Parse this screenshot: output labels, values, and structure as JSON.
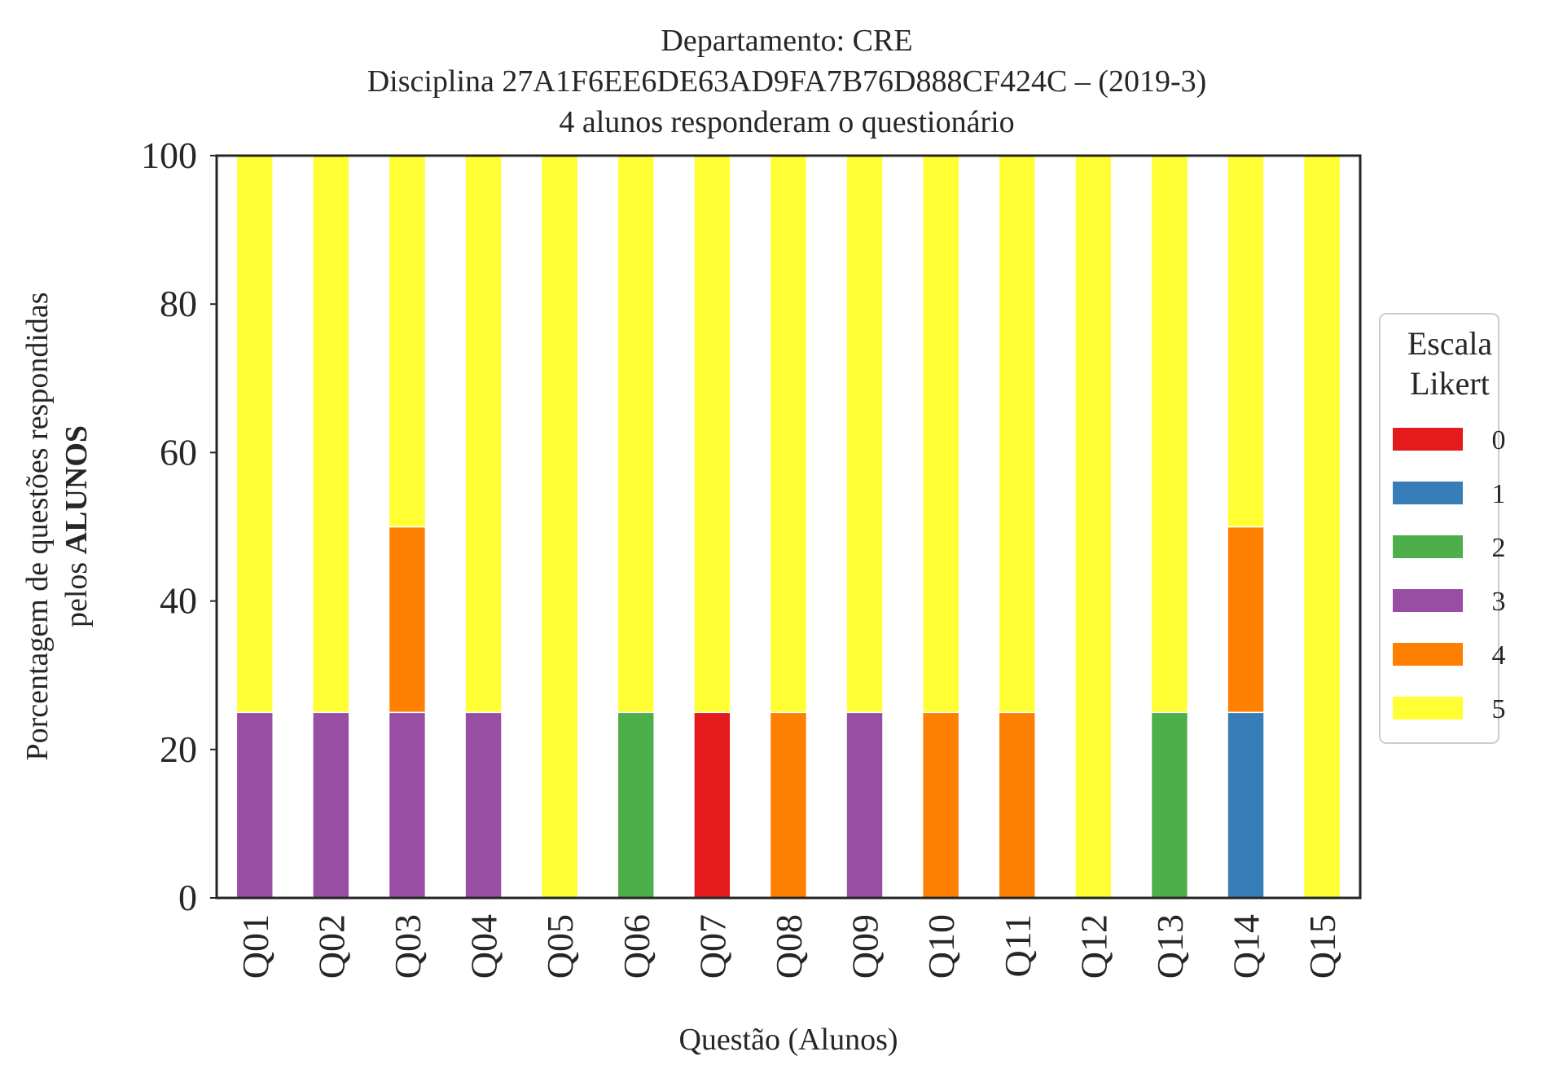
{
  "chart_data": {
    "type": "bar",
    "stacked": true,
    "title": [
      "Departamento: CRE",
      "Disciplina 27A1F6EE6DE63AD9FA7B76D888CF424C – (2019-3)",
      "4 alunos responderam o questionário"
    ],
    "xlabel": "Questão (Alunos)",
    "ylabel_line1": "Porcentagem de questões respondidas",
    "ylabel_line2_prefix": "pelos ",
    "ylabel_line2_bold": "ALUNOS",
    "ylim": [
      0,
      100
    ],
    "yticks": [
      0,
      20,
      40,
      60,
      80,
      100
    ],
    "grid": false,
    "legend": {
      "title_line1": "Escala",
      "title_line2": "Likert",
      "position": "right-center"
    },
    "categories": [
      "Q01",
      "Q02",
      "Q03",
      "Q04",
      "Q05",
      "Q06",
      "Q07",
      "Q08",
      "Q09",
      "Q10",
      "Q11",
      "Q12",
      "Q13",
      "Q14",
      "Q15"
    ],
    "series": [
      {
        "name": "0",
        "color": "#e41a1c",
        "values": [
          0,
          0,
          0,
          0,
          0,
          0,
          25,
          0,
          0,
          0,
          0,
          0,
          0,
          0,
          0
        ]
      },
      {
        "name": "1",
        "color": "#377eb8",
        "values": [
          0,
          0,
          0,
          0,
          0,
          0,
          0,
          0,
          0,
          0,
          0,
          0,
          0,
          25,
          0
        ]
      },
      {
        "name": "2",
        "color": "#4daf4a",
        "values": [
          0,
          0,
          0,
          0,
          0,
          25,
          0,
          0,
          0,
          0,
          0,
          0,
          25,
          0,
          0
        ]
      },
      {
        "name": "3",
        "color": "#984ea3",
        "values": [
          25,
          25,
          25,
          25,
          0,
          0,
          0,
          0,
          25,
          0,
          0,
          0,
          0,
          0,
          0
        ]
      },
      {
        "name": "4",
        "color": "#ff7f00",
        "values": [
          0,
          0,
          25,
          0,
          0,
          0,
          0,
          25,
          0,
          25,
          25,
          0,
          0,
          25,
          0
        ]
      },
      {
        "name": "5",
        "color": "#ffff33",
        "values": [
          75,
          75,
          50,
          75,
          100,
          75,
          75,
          75,
          75,
          75,
          75,
          100,
          75,
          50,
          100
        ]
      }
    ]
  }
}
